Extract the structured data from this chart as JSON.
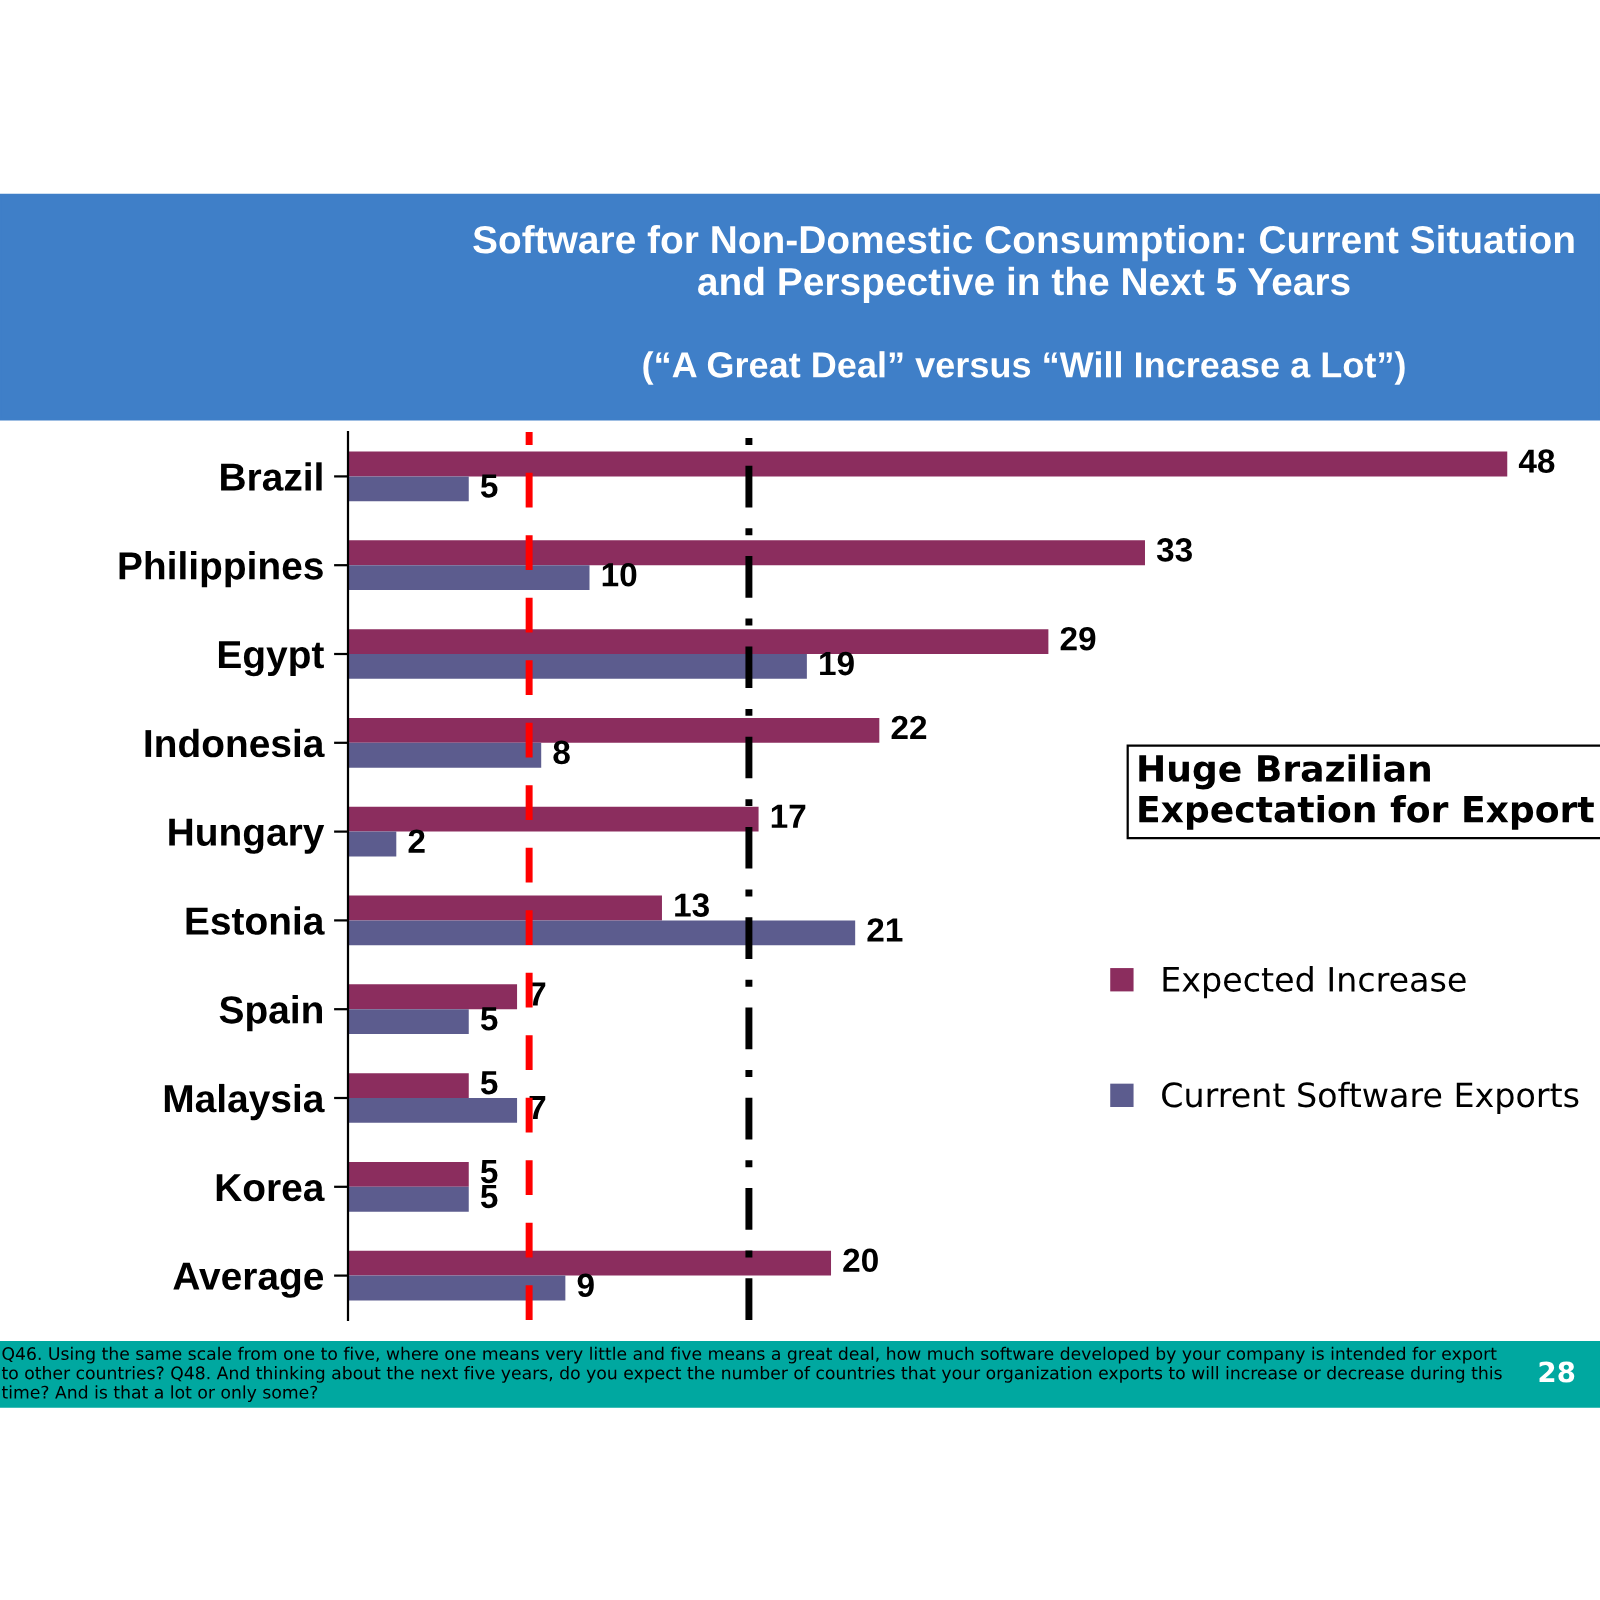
{
  "chart_data": {
    "type": "bar",
    "orientation": "horizontal",
    "title": "Software for Non-Domestic Consumption: Current Situation and Perspective in the Next 5 Years",
    "subtitle": "(“A Great Deal” versus “Will Increase a Lot”)",
    "categories": [
      "Brazil",
      "Philippines",
      "Egypt",
      "Indonesia",
      "Hungary",
      "Estonia",
      "Spain",
      "Malaysia",
      "Korea",
      "Average"
    ],
    "series": [
      {
        "name": "Expected Increase",
        "color": "#8b2d5e",
        "values": [
          48,
          33,
          29,
          22,
          17,
          13,
          7,
          5,
          5,
          20
        ]
      },
      {
        "name": "Current Software Exports",
        "color": "#5c5c8e",
        "values": [
          5,
          10,
          19,
          8,
          2,
          21,
          5,
          7,
          5,
          9
        ]
      }
    ],
    "data_labels": true,
    "legend": "right",
    "grid": false,
    "ref_lines": [
      {
        "axis": "x",
        "value": 7.5,
        "color": "#ff0000",
        "line_style": "dashed"
      },
      {
        "axis": "x",
        "value": 16.6,
        "color": "#000000",
        "line_style": "dashdot"
      }
    ],
    "annotations": [
      "Huge Brazilian Expectation for Export",
      "Q46. Using the same scale from one to five, where one means very little and five means a great deal, how much software developed by your company is intended for export to other countries? Q48. And thinking about the next five years, do you expect the number of countries that your organization exports to will increase or decrease during this time? And is that a lot or only some?",
      "28"
    ]
  }
}
